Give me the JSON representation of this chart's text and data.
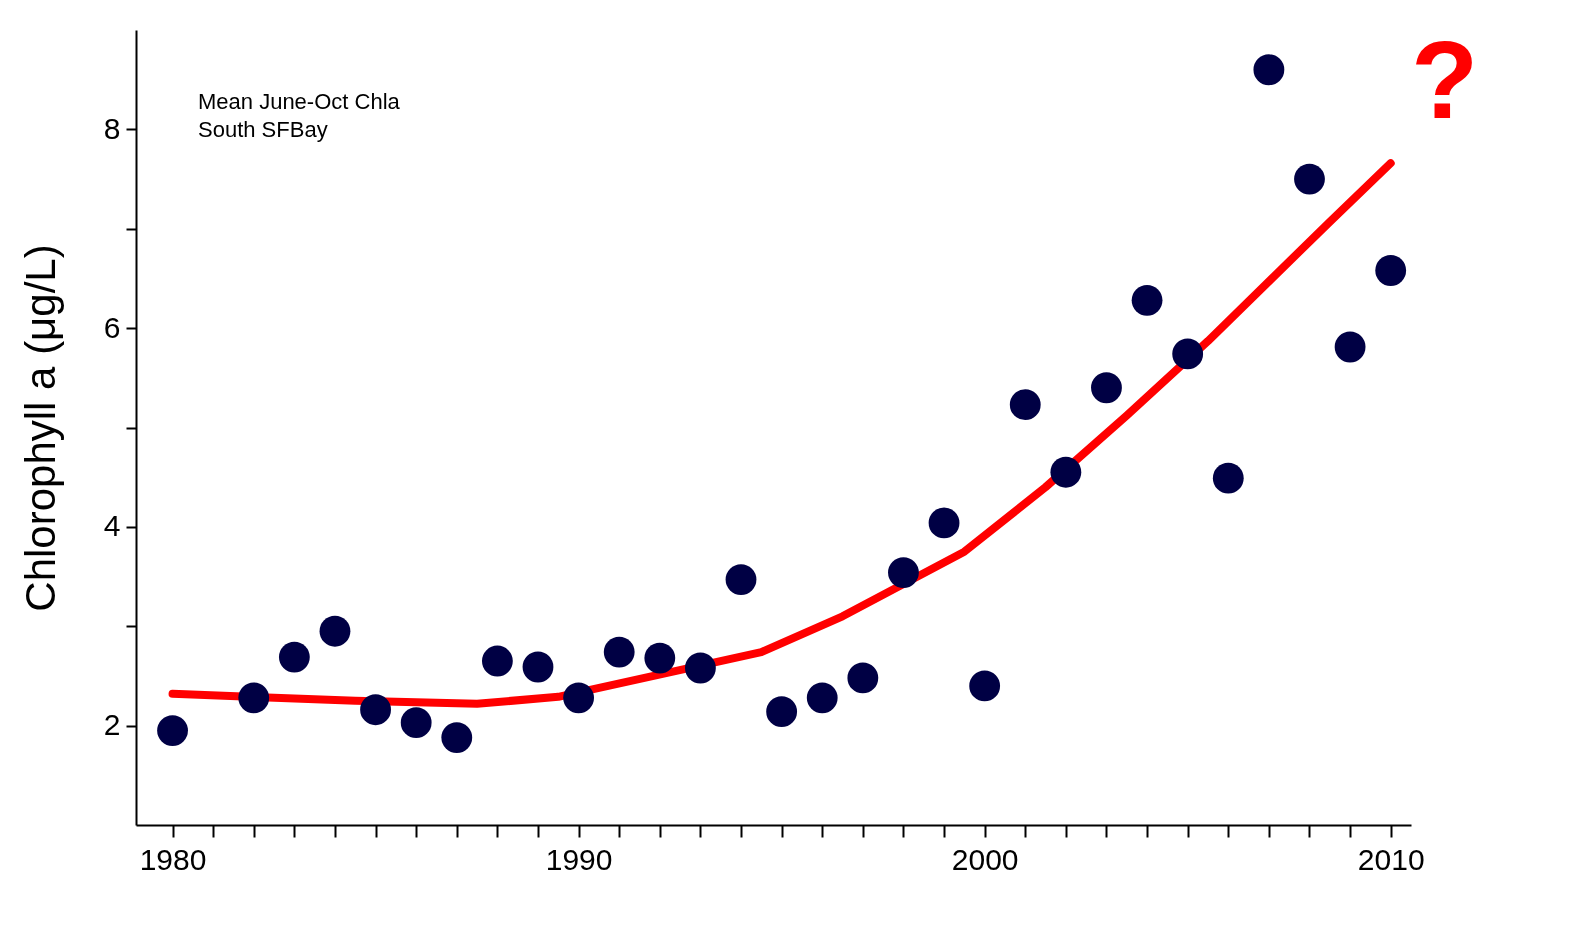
{
  "chart_data": {
    "type": "scatter",
    "ylabel": "Chlorophyll a (μg/L)",
    "annotations": [
      "Mean June-Oct Chla",
      "South SFBay",
      "?"
    ],
    "xlim": [
      1979.1,
      2010.5
    ],
    "xticks": [
      1980,
      {
        "value": 1981,
        "label": null
      },
      {
        "value": 1982,
        "label": null
      },
      {
        "value": 1983,
        "label": null
      },
      {
        "value": 1984,
        "label": null
      },
      {
        "value": 1985,
        "label": null
      },
      {
        "value": 1986,
        "label": null
      },
      {
        "value": 1987,
        "label": null
      },
      {
        "value": 1988,
        "label": null
      },
      {
        "value": 1989,
        "label": null
      },
      1990,
      {
        "value": 1991,
        "label": null
      },
      {
        "value": 1992,
        "label": null
      },
      {
        "value": 1993,
        "label": null
      },
      {
        "value": 1994,
        "label": null
      },
      {
        "value": 1995,
        "label": null
      },
      {
        "value": 1996,
        "label": null
      },
      {
        "value": 1997,
        "label": null
      },
      {
        "value": 1998,
        "label": null
      },
      {
        "value": 1999,
        "label": null
      },
      2000,
      {
        "value": 2001,
        "label": null
      },
      {
        "value": 2002,
        "label": null
      },
      {
        "value": 2003,
        "label": null
      },
      {
        "value": 2004,
        "label": null
      },
      {
        "value": 2005,
        "label": null
      },
      {
        "value": 2006,
        "label": null
      },
      {
        "value": 2007,
        "label": null
      },
      {
        "value": 2008,
        "label": null
      },
      {
        "value": 2009,
        "label": null
      },
      2010
    ],
    "ylim": [
      1,
      9
    ],
    "yticks": [
      2,
      {
        "value": 3,
        "label": null
      },
      4,
      {
        "value": 5,
        "label": null
      },
      6,
      {
        "value": 7,
        "label": null
      },
      8
    ],
    "grid": false,
    "marker": "circle",
    "series": [
      {
        "color": "#000044",
        "x": [
          1980,
          1982,
          1983,
          1984,
          1985,
          1986,
          1987,
          1988,
          1989,
          1990,
          1991,
          1992,
          1993,
          1994,
          1995,
          1996,
          1997,
          1998,
          1999,
          2000,
          2001,
          2002,
          2003,
          2004,
          2005,
          2006,
          2007,
          2008,
          2009,
          2010
        ],
        "values": [
          1.95,
          2.28,
          2.69,
          2.95,
          2.16,
          2.03,
          1.88,
          2.65,
          2.59,
          2.28,
          2.74,
          2.68,
          2.58,
          3.47,
          2.14,
          2.28,
          2.48,
          3.54,
          4.04,
          2.4,
          5.23,
          4.55,
          5.4,
          6.28,
          5.74,
          4.49,
          8.6,
          7.5,
          5.81,
          6.58
        ]
      },
      {
        "type": "line",
        "color": "#ff0000",
        "marker": "none",
        "line_style": "solid",
        "x": [
          1980,
          1984.5,
          1987.5,
          1989.5,
          1994.5,
          1996.5,
          1999.5,
          2001.5,
          2003.5,
          2005.5,
          2008.5,
          2010
        ],
        "values": [
          2.32,
          2.25,
          2.22,
          2.29,
          2.74,
          3.1,
          3.75,
          4.4,
          5.12,
          5.87,
          7.07,
          7.66
        ]
      }
    ]
  }
}
